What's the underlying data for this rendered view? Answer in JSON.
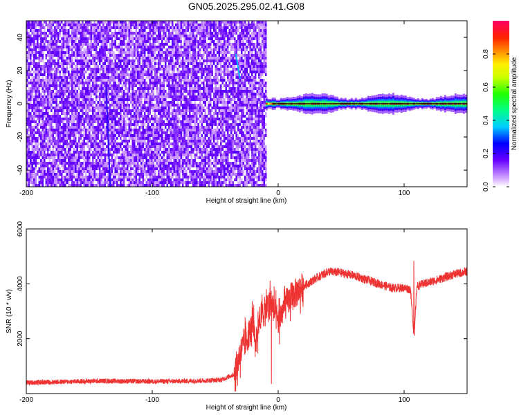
{
  "title": "GN05.2025.295.02.41.G08",
  "chart_data": [
    {
      "type": "heatmap",
      "xlabel": "Height of straight line (km)",
      "ylabel": "Frequency (Hz)",
      "xlim": [
        -200,
        150
      ],
      "ylim": [
        -50,
        50
      ],
      "xticks": [
        -200,
        -100,
        0,
        100
      ],
      "yticks": [
        -40,
        -20,
        0,
        20,
        40
      ],
      "colorbar": {
        "label": "Normalized spectral amplitude",
        "range": [
          0,
          1
        ],
        "ticks": [
          "0.0",
          "0.2",
          "0.4",
          "0.6",
          "0.8"
        ]
      },
      "regions": [
        {
          "kind": "noise",
          "x_range": [
            -200,
            -10
          ],
          "y_range": [
            -50,
            50
          ],
          "level": 0.12
        },
        {
          "kind": "ridge",
          "x_range": [
            -10,
            150
          ],
          "center_frequency": 0,
          "half_width": 4,
          "level": 0.95
        },
        {
          "kind": "streak",
          "x": -135,
          "y_range": [
            -50,
            10
          ],
          "level": 0.22
        },
        {
          "kind": "streak",
          "x": -32,
          "y_range": [
            15,
            30
          ],
          "level": 0.35
        }
      ]
    },
    {
      "type": "line",
      "xlabel": "Height of straight line (km)",
      "ylabel": "SNR (10 * v/v)",
      "xlim": [
        -200,
        150
      ],
      "ylim": [
        0,
        6000
      ],
      "xticks": [
        -200,
        -100,
        0,
        100
      ],
      "yticks": [
        2000,
        4000,
        6000
      ],
      "series": [
        {
          "color": "#ee3333",
          "x": [
            -200,
            -180,
            -160,
            -140,
            -120,
            -100,
            -80,
            -60,
            -45,
            -35,
            -30,
            -25,
            -20,
            -18,
            -15,
            -10,
            -5,
            0,
            5,
            10,
            20,
            30,
            40,
            50,
            60,
            70,
            80,
            90,
            100,
            105,
            108,
            110,
            115,
            120,
            130,
            140,
            150
          ],
          "y": [
            400,
            420,
            440,
            460,
            450,
            440,
            450,
            470,
            500,
            700,
            1500,
            2000,
            2500,
            1800,
            2800,
            3000,
            3300,
            2600,
            3200,
            3500,
            3900,
            4200,
            4450,
            4400,
            4300,
            4150,
            4000,
            3850,
            3850,
            3800,
            2000,
            3900,
            4000,
            4050,
            4200,
            4350,
            4450
          ]
        }
      ]
    }
  ]
}
